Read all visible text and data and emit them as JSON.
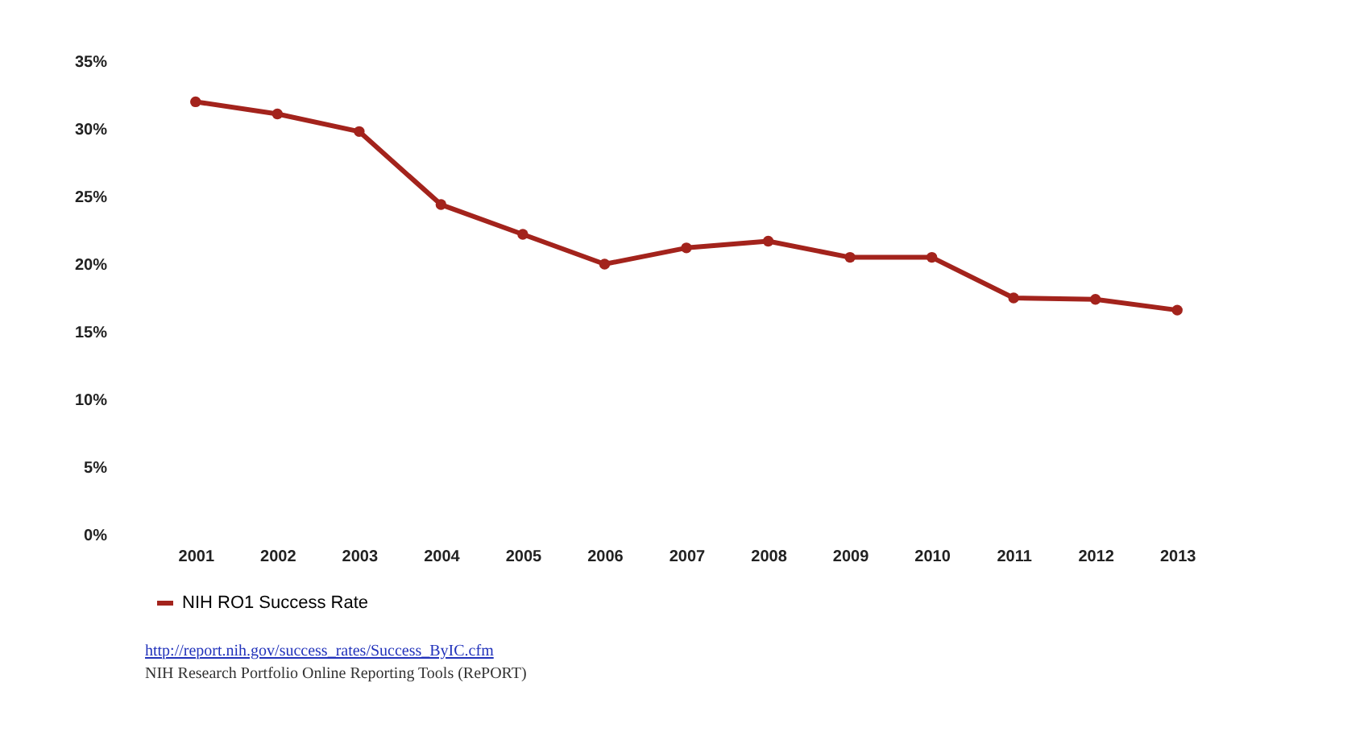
{
  "chart_data": {
    "type": "line",
    "categories": [
      "2001",
      "2002",
      "2003",
      "2004",
      "2005",
      "2006",
      "2007",
      "2008",
      "2009",
      "2010",
      "2011",
      "2012",
      "2013"
    ],
    "series": [
      {
        "name": "NIH RO1 Success Rate",
        "color": "#a3231c",
        "values": [
          32.0,
          31.1,
          29.8,
          24.4,
          22.2,
          20.0,
          21.2,
          21.7,
          20.5,
          20.5,
          17.5,
          17.4,
          16.6
        ]
      }
    ],
    "ylim": [
      0,
      35
    ],
    "yticks": [
      {
        "value": 0,
        "label": "0%"
      },
      {
        "value": 5,
        "label": "5%"
      },
      {
        "value": 10,
        "label": "10%"
      },
      {
        "value": 15,
        "label": "15%"
      },
      {
        "value": 20,
        "label": "20%"
      },
      {
        "value": 25,
        "label": "25%"
      },
      {
        "value": 30,
        "label": "30%"
      },
      {
        "value": 35,
        "label": "35%"
      }
    ],
    "grid": false,
    "legend": "bottom",
    "marker": "circle",
    "line_style": "solid",
    "annotations": [
      "http://report.nih.gov/success_rates/Success_ByIC.cfm",
      "NIH Research Portfolio Online Reporting Tools (RePORT)"
    ]
  }
}
